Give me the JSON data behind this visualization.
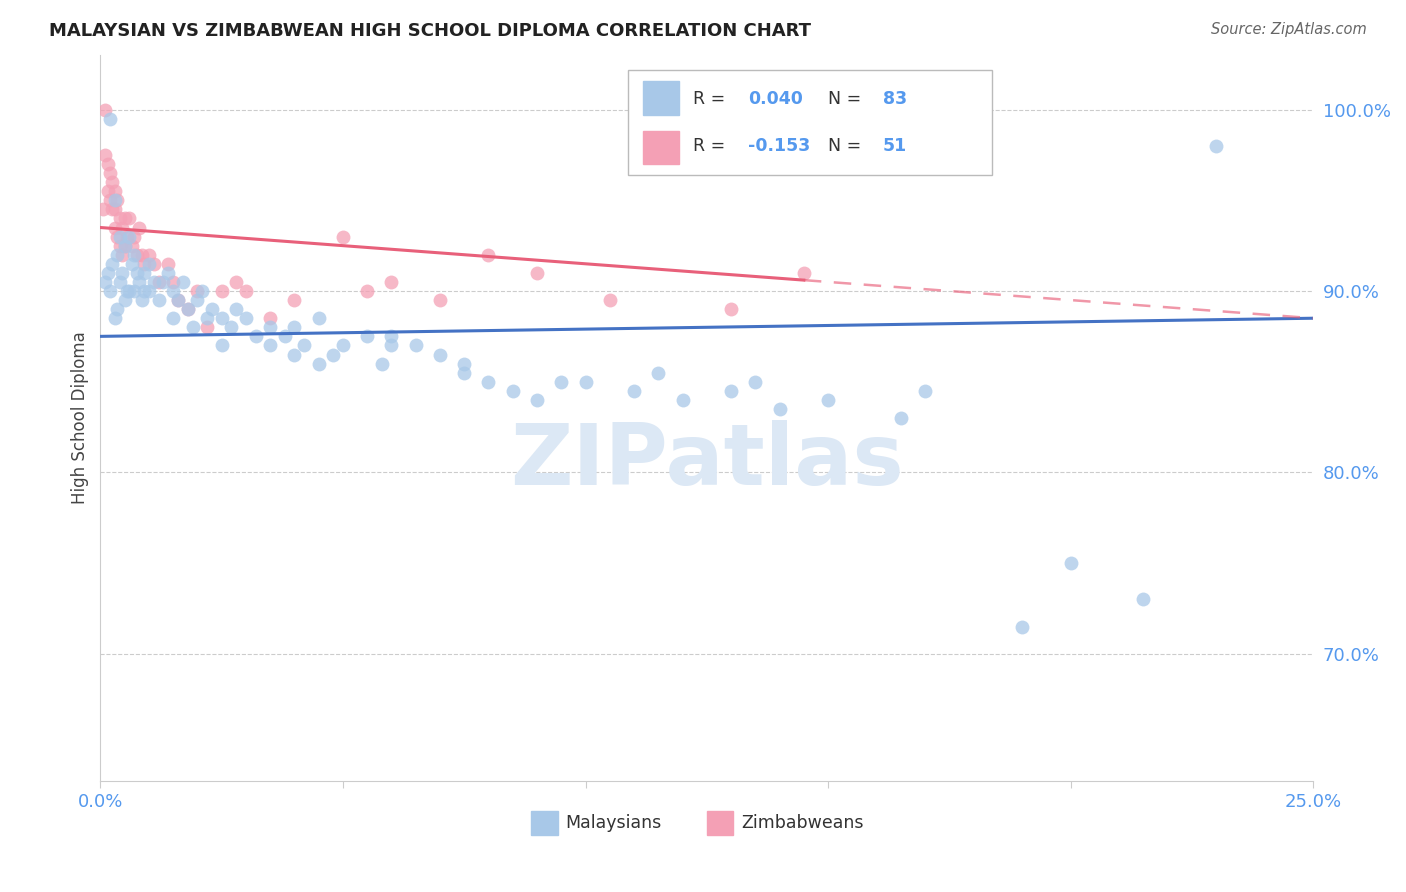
{
  "title": "MALAYSIAN VS ZIMBABWEAN HIGH SCHOOL DIPLOMA CORRELATION CHART",
  "source": "Source: ZipAtlas.com",
  "ylabel": "High School Diploma",
  "xlim": [
    0.0,
    25.0
  ],
  "ylim": [
    63.0,
    103.0
  ],
  "yticks": [
    70.0,
    80.0,
    90.0,
    100.0
  ],
  "xticks": [
    0.0,
    5.0,
    10.0,
    15.0,
    20.0,
    25.0
  ],
  "malaysian_R": 0.04,
  "malaysian_N": 83,
  "zimbabwean_R": -0.153,
  "zimbabwean_N": 51,
  "blue_color": "#a8c8e8",
  "pink_color": "#f4a0b5",
  "blue_line_color": "#4472c4",
  "pink_line_color": "#e8607a",
  "watermark_color": "#dce8f5",
  "scatter_alpha": 0.75,
  "scatter_size": 100,
  "malaysian_x": [
    0.1,
    0.15,
    0.2,
    0.2,
    0.25,
    0.3,
    0.3,
    0.35,
    0.35,
    0.4,
    0.4,
    0.45,
    0.5,
    0.5,
    0.55,
    0.6,
    0.6,
    0.65,
    0.7,
    0.7,
    0.75,
    0.8,
    0.85,
    0.9,
    0.9,
    1.0,
    1.0,
    1.1,
    1.2,
    1.3,
    1.4,
    1.5,
    1.5,
    1.6,
    1.7,
    1.8,
    1.9,
    2.0,
    2.1,
    2.2,
    2.3,
    2.5,
    2.5,
    2.7,
    2.8,
    3.0,
    3.2,
    3.5,
    3.5,
    3.8,
    4.0,
    4.0,
    4.2,
    4.5,
    4.8,
    5.0,
    5.5,
    5.8,
    6.0,
    6.5,
    7.0,
    7.5,
    8.0,
    8.5,
    9.0,
    10.0,
    11.0,
    12.0,
    13.0,
    14.0,
    15.0,
    16.5,
    19.0,
    21.5,
    23.0,
    4.5,
    6.0,
    7.5,
    9.5,
    11.5,
    13.5,
    17.0,
    20.0
  ],
  "malaysian_y": [
    90.5,
    91.0,
    99.5,
    90.0,
    91.5,
    95.0,
    88.5,
    92.0,
    89.0,
    93.0,
    90.5,
    91.0,
    92.5,
    89.5,
    90.0,
    93.0,
    90.0,
    91.5,
    92.0,
    90.0,
    91.0,
    90.5,
    89.5,
    91.0,
    90.0,
    91.5,
    90.0,
    90.5,
    89.5,
    90.5,
    91.0,
    90.0,
    88.5,
    89.5,
    90.5,
    89.0,
    88.0,
    89.5,
    90.0,
    88.5,
    89.0,
    88.5,
    87.0,
    88.0,
    89.0,
    88.5,
    87.5,
    88.0,
    87.0,
    87.5,
    88.0,
    86.5,
    87.0,
    88.5,
    86.5,
    87.0,
    87.5,
    86.0,
    87.5,
    87.0,
    86.5,
    86.0,
    85.0,
    84.5,
    84.0,
    85.0,
    84.5,
    84.0,
    84.5,
    83.5,
    84.0,
    83.0,
    71.5,
    73.0,
    98.0,
    86.0,
    87.0,
    85.5,
    85.0,
    85.5,
    85.0,
    84.5,
    75.0
  ],
  "zimbabwean_x": [
    0.05,
    0.1,
    0.1,
    0.15,
    0.15,
    0.2,
    0.2,
    0.25,
    0.25,
    0.3,
    0.3,
    0.3,
    0.35,
    0.35,
    0.4,
    0.4,
    0.45,
    0.45,
    0.5,
    0.5,
    0.55,
    0.6,
    0.65,
    0.7,
    0.75,
    0.8,
    0.85,
    0.9,
    1.0,
    1.1,
    1.2,
    1.4,
    1.5,
    1.6,
    1.8,
    2.0,
    2.2,
    2.5,
    2.8,
    3.0,
    3.5,
    4.0,
    5.0,
    5.5,
    6.0,
    7.0,
    8.0,
    9.0,
    10.5,
    13.0,
    14.5
  ],
  "zimbabwean_y": [
    94.5,
    100.0,
    97.5,
    97.0,
    95.5,
    96.5,
    95.0,
    96.0,
    94.5,
    95.5,
    94.5,
    93.5,
    95.0,
    93.0,
    94.0,
    92.5,
    93.5,
    92.0,
    94.0,
    92.5,
    93.0,
    94.0,
    92.5,
    93.0,
    92.0,
    93.5,
    92.0,
    91.5,
    92.0,
    91.5,
    90.5,
    91.5,
    90.5,
    89.5,
    89.0,
    90.0,
    88.0,
    90.0,
    90.5,
    90.0,
    88.5,
    89.5,
    93.0,
    90.0,
    90.5,
    89.5,
    92.0,
    91.0,
    89.5,
    89.0,
    91.0
  ],
  "blue_trend_x0": 0.0,
  "blue_trend_x1": 25.0,
  "blue_trend_y0": 87.5,
  "blue_trend_y1": 88.5,
  "pink_trend_x0": 0.0,
  "pink_trend_x1": 25.0,
  "pink_trend_y0": 93.5,
  "pink_trend_y1": 88.5,
  "pink_solid_end_x": 14.5
}
